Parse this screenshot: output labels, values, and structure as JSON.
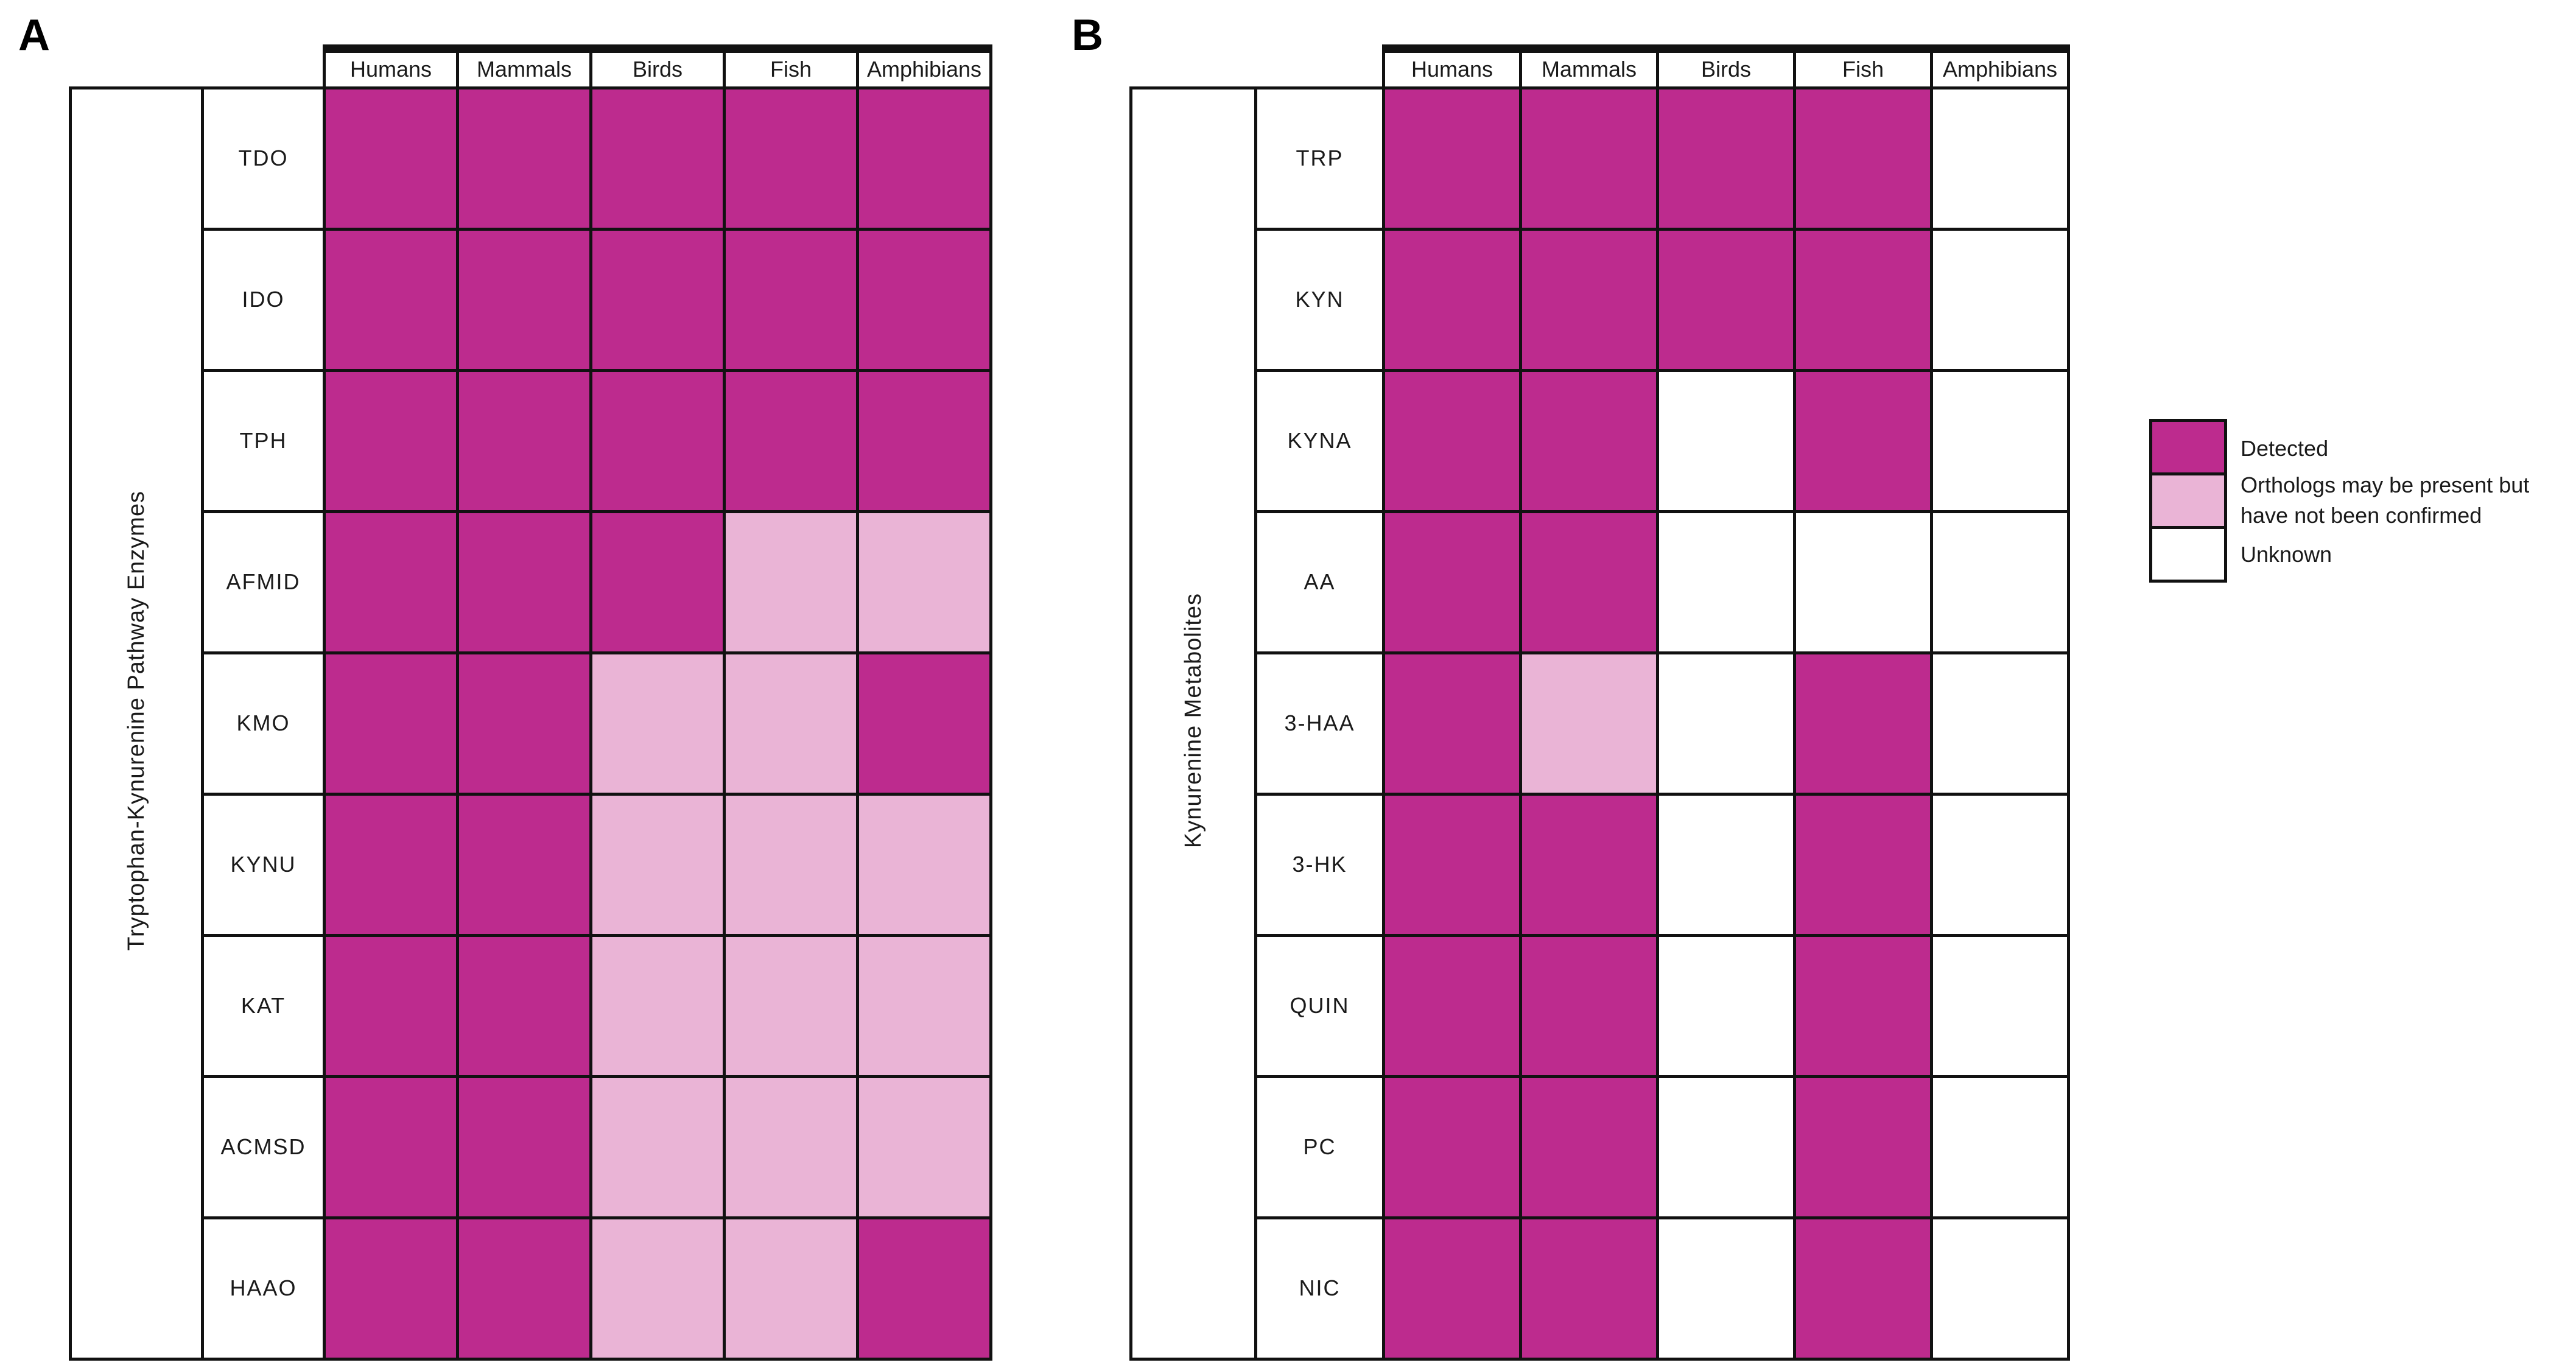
{
  "colors": {
    "detected": "#BD2B8E",
    "possible": "#EAB4D6",
    "unknown": "#FFFFFF",
    "grid_line": "#111111"
  },
  "panels": [
    {
      "label": "A",
      "axis_label": "Tryptophan-Kynurenine Pathway Enzymes",
      "columns": [
        "Humans",
        "Mammals",
        "Birds",
        "Fish",
        "Amphibians"
      ],
      "rows": [
        {
          "label": "TDO",
          "values": [
            "detected",
            "detected",
            "detected",
            "detected",
            "detected"
          ]
        },
        {
          "label": "IDO",
          "values": [
            "detected",
            "detected",
            "detected",
            "detected",
            "detected"
          ]
        },
        {
          "label": "TPH",
          "values": [
            "detected",
            "detected",
            "detected",
            "detected",
            "detected"
          ]
        },
        {
          "label": "AFMID",
          "values": [
            "detected",
            "detected",
            "detected",
            "possible",
            "possible"
          ]
        },
        {
          "label": "KMO",
          "values": [
            "detected",
            "detected",
            "possible",
            "possible",
            "detected"
          ]
        },
        {
          "label": "KYNU",
          "values": [
            "detected",
            "detected",
            "possible",
            "possible",
            "possible"
          ]
        },
        {
          "label": "KAT",
          "values": [
            "detected",
            "detected",
            "possible",
            "possible",
            "possible"
          ]
        },
        {
          "label": "ACMSD",
          "values": [
            "detected",
            "detected",
            "possible",
            "possible",
            "possible"
          ]
        },
        {
          "label": "HAAO",
          "values": [
            "detected",
            "detected",
            "possible",
            "possible",
            "detected"
          ]
        }
      ]
    },
    {
      "label": "B",
      "axis_label": "Kynurenine Metabolites",
      "columns": [
        "Humans",
        "Mammals",
        "Birds",
        "Fish",
        "Amphibians"
      ],
      "rows": [
        {
          "label": "TRP",
          "values": [
            "detected",
            "detected",
            "detected",
            "detected",
            "unknown"
          ]
        },
        {
          "label": "KYN",
          "values": [
            "detected",
            "detected",
            "detected",
            "detected",
            "unknown"
          ]
        },
        {
          "label": "KYNA",
          "values": [
            "detected",
            "detected",
            "unknown",
            "detected",
            "unknown"
          ]
        },
        {
          "label": "AA",
          "values": [
            "detected",
            "detected",
            "unknown",
            "unknown",
            "unknown"
          ]
        },
        {
          "label": "3-HAA",
          "values": [
            "detected",
            "possible",
            "unknown",
            "detected",
            "unknown"
          ]
        },
        {
          "label": "3-HK",
          "values": [
            "detected",
            "detected",
            "unknown",
            "detected",
            "unknown"
          ]
        },
        {
          "label": "QUIN",
          "values": [
            "detected",
            "detected",
            "unknown",
            "detected",
            "unknown"
          ]
        },
        {
          "label": "PC",
          "values": [
            "detected",
            "detected",
            "unknown",
            "detected",
            "unknown"
          ]
        },
        {
          "label": "NIC",
          "values": [
            "detected",
            "detected",
            "unknown",
            "detected",
            "unknown"
          ]
        }
      ]
    }
  ],
  "legend": {
    "items": [
      {
        "status": "detected",
        "label": "Detected"
      },
      {
        "status": "possible",
        "label": "Orthologs may be present but have not been confirmed"
      },
      {
        "status": "unknown",
        "label": "Unknown"
      }
    ]
  },
  "chart_data": [
    {
      "type": "heatmap",
      "title": "A",
      "ylabel": "Tryptophan-Kynurenine Pathway Enzymes",
      "x_categories": [
        "Humans",
        "Mammals",
        "Birds",
        "Fish",
        "Amphibians"
      ],
      "y_categories": [
        "TDO",
        "IDO",
        "TPH",
        "AFMID",
        "KMO",
        "KYNU",
        "KAT",
        "ACMSD",
        "HAAO"
      ],
      "values": [
        [
          "detected",
          "detected",
          "detected",
          "detected",
          "detected"
        ],
        [
          "detected",
          "detected",
          "detected",
          "detected",
          "detected"
        ],
        [
          "detected",
          "detected",
          "detected",
          "detected",
          "detected"
        ],
        [
          "detected",
          "detected",
          "detected",
          "possible",
          "possible"
        ],
        [
          "detected",
          "detected",
          "possible",
          "possible",
          "detected"
        ],
        [
          "detected",
          "detected",
          "possible",
          "possible",
          "possible"
        ],
        [
          "detected",
          "detected",
          "possible",
          "possible",
          "possible"
        ],
        [
          "detected",
          "detected",
          "possible",
          "possible",
          "possible"
        ],
        [
          "detected",
          "detected",
          "possible",
          "possible",
          "detected"
        ]
      ],
      "value_legend": {
        "detected": "Detected",
        "possible": "Orthologs may be present but have not been confirmed",
        "unknown": "Unknown"
      },
      "legend_position": "right"
    },
    {
      "type": "heatmap",
      "title": "B",
      "ylabel": "Kynurenine Metabolites",
      "x_categories": [
        "Humans",
        "Mammals",
        "Birds",
        "Fish",
        "Amphibians"
      ],
      "y_categories": [
        "TRP",
        "KYN",
        "KYNA",
        "AA",
        "3-HAA",
        "3-HK",
        "QUIN",
        "PC",
        "NIC"
      ],
      "values": [
        [
          "detected",
          "detected",
          "detected",
          "detected",
          "unknown"
        ],
        [
          "detected",
          "detected",
          "detected",
          "detected",
          "unknown"
        ],
        [
          "detected",
          "detected",
          "unknown",
          "detected",
          "unknown"
        ],
        [
          "detected",
          "detected",
          "unknown",
          "unknown",
          "unknown"
        ],
        [
          "detected",
          "possible",
          "unknown",
          "detected",
          "unknown"
        ],
        [
          "detected",
          "detected",
          "unknown",
          "detected",
          "unknown"
        ],
        [
          "detected",
          "detected",
          "unknown",
          "detected",
          "unknown"
        ],
        [
          "detected",
          "detected",
          "unknown",
          "detected",
          "unknown"
        ],
        [
          "detected",
          "detected",
          "unknown",
          "detected",
          "unknown"
        ]
      ],
      "value_legend": {
        "detected": "Detected",
        "possible": "Orthologs may be present but have not been confirmed",
        "unknown": "Unknown"
      },
      "legend_position": "right"
    }
  ]
}
